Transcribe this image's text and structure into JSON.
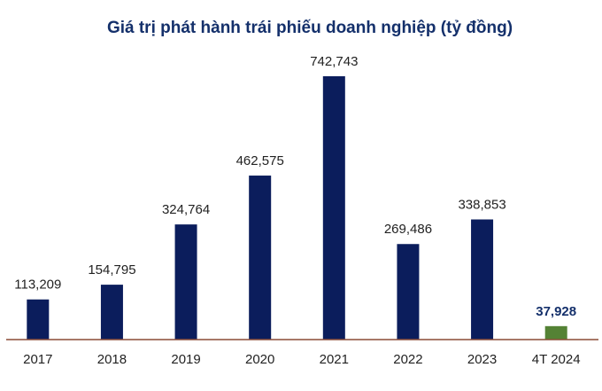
{
  "chart_data": {
    "type": "bar",
    "title": "Giá trị phát hành trái phiếu doanh nghiệp (tỷ đồng)",
    "xlabel": "",
    "ylabel": "",
    "ylim": [
      0,
      800000
    ],
    "grid": false,
    "legend": "none",
    "categories": [
      "2017",
      "2018",
      "2019",
      "2020",
      "2021",
      "2022",
      "2023",
      "4T 2024"
    ],
    "values": [
      113209,
      154795,
      324764,
      462575,
      742743,
      269486,
      338853,
      37928
    ],
    "labels": [
      "113,209",
      "154,795",
      "324,764",
      "462,575",
      "742,743",
      "269,486",
      "338,853",
      "37,928"
    ],
    "highlight_index": 7
  },
  "colors": {
    "bar": "#0b1d5c",
    "highlight_bar": "#548235",
    "axis": "#8b4c36",
    "title": "#14306b"
  }
}
